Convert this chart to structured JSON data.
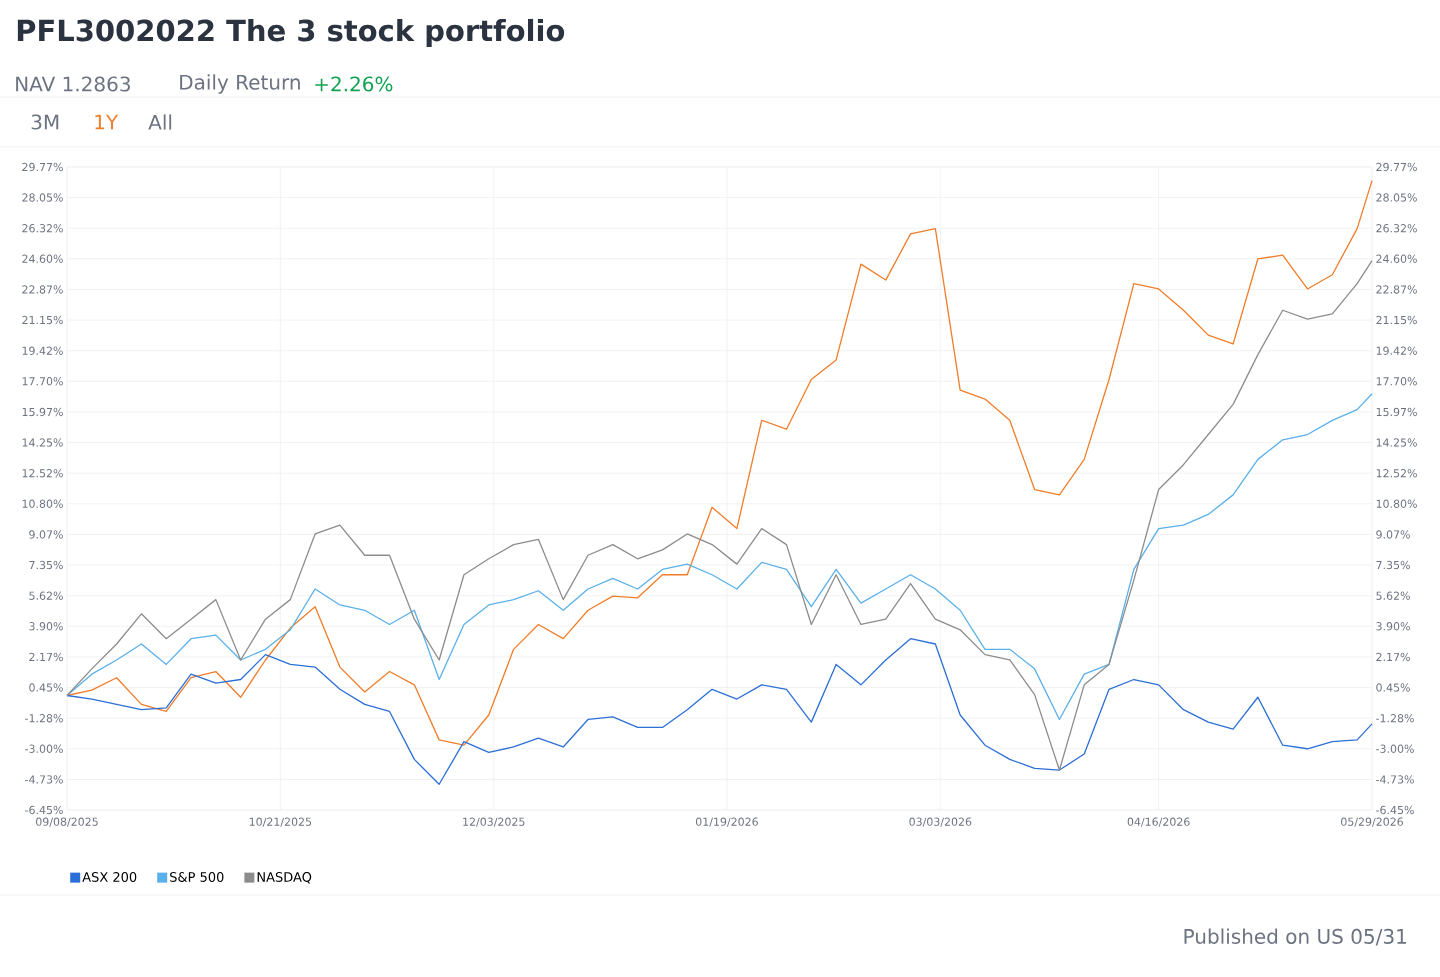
{
  "chart_data": {
    "type": "line",
    "title": "PFL3002022 The 3 stock portfolio",
    "subtitle": "NAV 1.2863",
    "annotations": [
      "Daily Return",
      "+2.26%",
      "3M",
      "1Y",
      "All",
      "Published on US 05/31"
    ],
    "x": [
      "2025-09-08",
      "2025-09-13",
      "2025-09-18",
      "2025-09-23",
      "2025-09-28",
      "2025-10-03",
      "2025-10-08",
      "2025-10-13",
      "2025-10-18",
      "2025-10-23",
      "2025-10-28",
      "2025-11-02",
      "2025-11-07",
      "2025-11-12",
      "2025-11-17",
      "2025-11-22",
      "2025-11-27",
      "2025-12-02",
      "2025-12-07",
      "2025-12-12",
      "2025-12-17",
      "2025-12-22",
      "2025-12-27",
      "2026-01-01",
      "2026-01-06",
      "2026-01-11",
      "2026-01-16",
      "2026-01-21",
      "2026-01-26",
      "2026-01-31",
      "2026-02-05",
      "2026-02-10",
      "2026-02-15",
      "2026-02-20",
      "2026-02-25",
      "2026-03-02",
      "2026-03-07",
      "2026-03-12",
      "2026-03-17",
      "2026-03-22",
      "2026-03-27",
      "2026-04-01",
      "2026-04-06",
      "2026-04-11",
      "2026-04-16",
      "2026-04-21",
      "2026-04-26",
      "2026-05-01",
      "2026-05-06",
      "2026-05-11",
      "2026-05-16",
      "2026-05-21",
      "2026-05-26",
      "2026-05-29"
    ],
    "series": [
      {
        "color": "#f07d2a",
        "values": [
          0,
          0.3,
          1.0,
          -0.5,
          -0.9,
          1.0,
          1.35,
          -0.1,
          2.0,
          3.8,
          5.0,
          1.6,
          0.2,
          1.35,
          0.6,
          -2.5,
          -2.8,
          -1.1,
          2.6,
          4.0,
          3.2,
          4.8,
          5.6,
          5.5,
          6.8,
          6.8,
          10.6,
          9.4,
          15.5,
          15.0,
          17.8,
          18.9,
          24.3,
          23.4,
          26.0,
          26.3,
          17.2,
          16.7,
          15.5,
          11.6,
          11.3,
          13.3,
          17.8,
          23.2,
          22.9,
          21.7,
          20.3,
          19.8,
          24.6,
          24.8,
          22.9,
          23.7,
          26.3,
          29.0
        ]
      },
      {
        "name": "ASX 200",
        "color": "#2c6fd6",
        "values": [
          0,
          -0.2,
          -0.5,
          -0.8,
          -0.7,
          1.2,
          0.7,
          0.9,
          2.3,
          1.75,
          1.6,
          0.35,
          -0.5,
          -0.9,
          -3.6,
          -5.0,
          -2.6,
          -3.2,
          -2.9,
          -2.4,
          -2.9,
          -1.35,
          -1.2,
          -1.8,
          -1.8,
          -0.8,
          0.35,
          -0.2,
          0.6,
          0.35,
          -1.5,
          1.75,
          0.6,
          2.0,
          3.2,
          2.9,
          -1.1,
          -2.8,
          -3.6,
          -4.1,
          -4.2,
          -3.3,
          0.35,
          0.9,
          0.6,
          -0.8,
          -1.5,
          -1.9,
          -0.1,
          -2.8,
          -3.0,
          -2.6,
          -2.5,
          -1.6
        ]
      },
      {
        "name": "S&P 500",
        "color": "#5ab0ea",
        "values": [
          0,
          1.2,
          2.0,
          2.9,
          1.75,
          3.2,
          3.4,
          2.0,
          2.6,
          3.7,
          6.0,
          5.1,
          4.8,
          4.0,
          4.8,
          0.9,
          4.0,
          5.1,
          5.4,
          5.9,
          4.8,
          6.0,
          6.6,
          6.0,
          7.1,
          7.4,
          6.8,
          6.0,
          7.5,
          7.1,
          5.0,
          7.1,
          5.2,
          6.0,
          6.8,
          6.0,
          4.8,
          2.6,
          2.6,
          1.5,
          -1.35,
          1.2,
          1.75,
          7.1,
          9.4,
          9.6,
          10.2,
          11.3,
          13.3,
          14.4,
          14.7,
          15.5,
          16.1,
          17.0
        ]
      },
      {
        "name": "NASDAQ",
        "color": "#8c8c8c",
        "values": [
          0,
          1.5,
          2.9,
          4.6,
          3.2,
          4.3,
          5.4,
          2.0,
          4.3,
          5.4,
          9.1,
          9.6,
          7.9,
          7.9,
          4.3,
          2.0,
          6.8,
          7.7,
          8.5,
          8.8,
          5.4,
          7.9,
          8.5,
          7.7,
          8.2,
          9.1,
          8.5,
          7.4,
          9.4,
          8.5,
          4.0,
          6.8,
          4.0,
          4.3,
          6.3,
          4.3,
          3.7,
          2.3,
          2.0,
          0.05,
          -4.2,
          0.6,
          1.75,
          6.5,
          11.6,
          13.0,
          14.7,
          16.4,
          19.2,
          21.7,
          21.2,
          21.5,
          23.2,
          24.5
        ]
      }
    ],
    "xlim": [
      "2025-09-08",
      "2026-05-29"
    ],
    "xticks": [
      {
        "value": "2025-09-08",
        "label": "09/08/2025"
      },
      {
        "value": "2025-10-21",
        "label": "10/21/2025"
      },
      {
        "value": "2025-12-03",
        "label": "12/03/2025"
      },
      {
        "value": "2026-01-19",
        "label": "01/19/2026"
      },
      {
        "value": "2026-03-03",
        "label": "03/03/2026"
      },
      {
        "value": "2026-04-16",
        "label": "04/16/2026"
      },
      {
        "value": "2026-05-29",
        "label": "05/29/2026"
      }
    ],
    "ylim": [
      -6.45,
      29.77
    ],
    "yticks": [
      {
        "value": 29.77,
        "label": "29.77%"
      },
      {
        "value": 28.05,
        "label": "28.05%"
      },
      {
        "value": 26.32,
        "label": "26.32%"
      },
      {
        "value": 24.6,
        "label": "24.60%"
      },
      {
        "value": 22.87,
        "label": "22.87%"
      },
      {
        "value": 21.15,
        "label": "21.15%"
      },
      {
        "value": 19.42,
        "label": "19.42%"
      },
      {
        "value": 17.7,
        "label": "17.70%"
      },
      {
        "value": 15.97,
        "label": "15.97%"
      },
      {
        "value": 14.25,
        "label": "14.25%"
      },
      {
        "value": 12.52,
        "label": "12.52%"
      },
      {
        "value": 10.8,
        "label": "10.80%"
      },
      {
        "value": 9.07,
        "label": "9.07%"
      },
      {
        "value": 7.35,
        "label": "7.35%"
      },
      {
        "value": 5.62,
        "label": "5.62%"
      },
      {
        "value": 3.9,
        "label": "3.90%"
      },
      {
        "value": 2.17,
        "label": "2.17%"
      },
      {
        "value": 0.45,
        "label": "0.45%"
      },
      {
        "value": -1.28,
        "label": "-1.28%"
      },
      {
        "value": -3.0,
        "label": "-3.00%"
      },
      {
        "value": -4.73,
        "label": "-4.73%"
      },
      {
        "value": -6.45,
        "label": "-6.45%"
      }
    ],
    "y2lim": [
      -6.45,
      29.77
    ],
    "y2ticks": [
      {
        "value": 29.77,
        "label": "29.77%"
      },
      {
        "value": 28.05,
        "label": "28.05%"
      },
      {
        "value": 26.32,
        "label": "26.32%"
      },
      {
        "value": 24.6,
        "label": "24.60%"
      },
      {
        "value": 22.87,
        "label": "22.87%"
      },
      {
        "value": 21.15,
        "label": "21.15%"
      },
      {
        "value": 19.42,
        "label": "19.42%"
      },
      {
        "value": 17.7,
        "label": "17.70%"
      },
      {
        "value": 15.97,
        "label": "15.97%"
      },
      {
        "value": 14.25,
        "label": "14.25%"
      },
      {
        "value": 12.52,
        "label": "12.52%"
      },
      {
        "value": 10.8,
        "label": "10.80%"
      },
      {
        "value": 9.07,
        "label": "9.07%"
      },
      {
        "value": 7.35,
        "label": "7.35%"
      },
      {
        "value": 5.62,
        "label": "5.62%"
      },
      {
        "value": 3.9,
        "label": "3.90%"
      },
      {
        "value": 2.17,
        "label": "2.17%"
      },
      {
        "value": 0.45,
        "label": "0.45%"
      },
      {
        "value": -1.28,
        "label": "-1.28%"
      },
      {
        "value": -3.0,
        "label": "-3.00%"
      },
      {
        "value": -4.73,
        "label": "-4.73%"
      },
      {
        "value": -6.45,
        "label": "-6.45%"
      }
    ],
    "grid": true,
    "legend": "bottom left",
    "marker": "none",
    "line_style": "solid"
  }
}
